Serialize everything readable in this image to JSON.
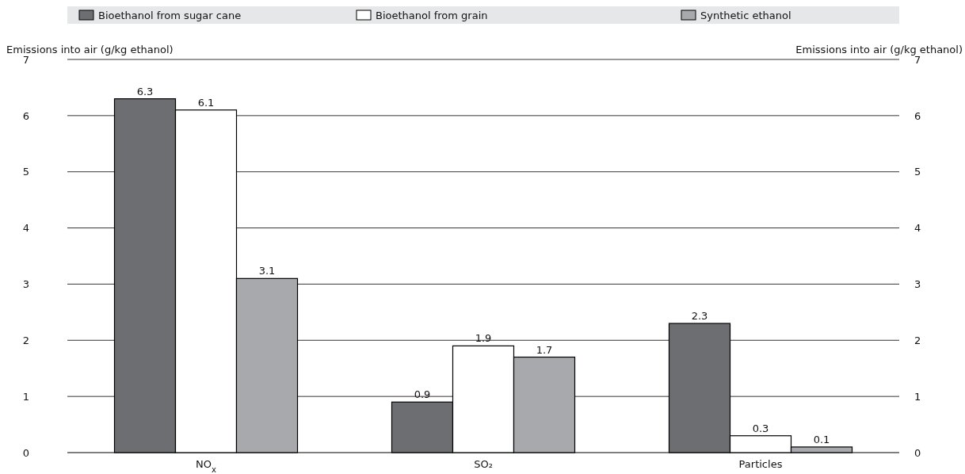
{
  "chart_data": {
    "type": "bar",
    "ylabel": "Emissions into air (g/kg ethanol)",
    "y2label": "Emissions into air (g/kg ethanol)",
    "categories": [
      "NO$_{x}$",
      "SO₂",
      "Particles"
    ],
    "series": [
      {
        "name": "Bioethanol from sugar cane",
        "color": "#6d6e71",
        "values": [
          6.3,
          0.9,
          2.3
        ]
      },
      {
        "name": "Bioethanol from grain",
        "color": "#ffffff",
        "values": [
          6.1,
          1.9,
          0.3
        ]
      },
      {
        "name": "Synthetic ethanol",
        "color": "#a7a9ac",
        "values": [
          3.1,
          1.7,
          0.1
        ]
      }
    ],
    "ylim": [
      0,
      7
    ],
    "yticks": [
      0,
      1,
      2,
      3,
      4,
      5,
      6,
      7
    ],
    "y2lim": [
      0,
      7
    ],
    "y2ticks": [
      0,
      1,
      2,
      3,
      4,
      5,
      6,
      7
    ],
    "grid": "y",
    "legend": "top",
    "data_labels": true
  }
}
